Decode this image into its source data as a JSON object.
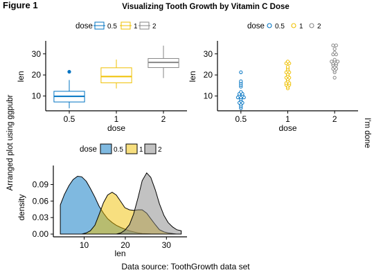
{
  "figure": {
    "label": "Figure 1",
    "title": "Visualizing Tooth Growth by Vitamin C Dose",
    "left_label": "Arranged plot using ggpubr",
    "right_label": "I'm done",
    "bottom_label": "Data source: ToothGrowth data set"
  },
  "colors": {
    "0.5": "#0073C2",
    "1": "#EFC000",
    "2": "#868686"
  },
  "chart_data": [
    {
      "id": "box",
      "type": "box",
      "xlabel": "dose",
      "ylabel": "len",
      "legend_title": "dose",
      "legend_position": "top",
      "categories": [
        "0.5",
        "1",
        "2"
      ],
      "yticks": [
        10,
        20,
        30
      ],
      "ylim": [
        3,
        35.5
      ],
      "grid": false,
      "boxes": [
        {
          "dose": "0.5",
          "min": 4.2,
          "q1": 7.2,
          "median": 9.85,
          "q3": 12.25,
          "max": 17.6,
          "outliers": [
            21.5
          ]
        },
        {
          "dose": "1",
          "min": 13.6,
          "q1": 16.25,
          "median": 19.25,
          "q3": 23.4,
          "max": 27.3,
          "outliers": []
        },
        {
          "dose": "2",
          "min": 18.5,
          "q1": 23.5,
          "median": 25.95,
          "q3": 27.8,
          "max": 33.9,
          "outliers": []
        }
      ]
    },
    {
      "id": "dot",
      "type": "dotplot",
      "xlabel": "dose",
      "ylabel": "len",
      "legend_title": "dose",
      "legend_position": "top",
      "categories": [
        "0.5",
        "1",
        "2"
      ],
      "yticks": [
        10,
        20,
        30
      ],
      "ylim": [
        3,
        35.5
      ],
      "grid": false,
      "points": {
        "0.5": [
          4.2,
          5.2,
          5.8,
          6.4,
          7.0,
          7.3,
          8.2,
          9.4,
          9.4,
          9.7,
          10.0,
          10.0,
          11.2,
          11.2,
          11.5,
          14.5,
          15.2,
          16.5,
          17.3,
          21.5
        ],
        "1": [
          13.6,
          14.5,
          15.2,
          15.5,
          16.5,
          16.5,
          17.3,
          17.6,
          18.5,
          18.8,
          19.7,
          20.0,
          21.2,
          21.5,
          22.4,
          23.3,
          23.6,
          25.2,
          25.8,
          26.4
        ],
        "2": [
          18.5,
          21.5,
          22.4,
          23.0,
          23.3,
          23.6,
          24.5,
          24.8,
          25.5,
          25.5,
          26.4,
          26.4,
          26.7,
          27.3,
          29.4,
          29.5,
          30.9,
          32.5,
          33.9,
          33.9
        ]
      }
    },
    {
      "id": "density",
      "type": "area",
      "xlabel": "len",
      "ylabel": "density",
      "legend_title": "dose",
      "legend_position": "top",
      "xticks": [
        10,
        20,
        30
      ],
      "yticks": [
        0.0,
        0.03,
        0.06,
        0.09
      ],
      "ytick_labels": [
        "0.00",
        "0.03",
        "0.06",
        "0.09"
      ],
      "xlim": [
        2.5,
        35
      ],
      "ylim": [
        -0.005,
        0.122
      ],
      "grid": false,
      "x": [
        4.2,
        5.2,
        6.3,
        7.3,
        8.4,
        9.4,
        10.5,
        11.5,
        12.6,
        13.6,
        14.7,
        15.7,
        16.8,
        17.8,
        18.9,
        19.9,
        21.0,
        22.0,
        23.1,
        24.1,
        25.2,
        26.2,
        27.3,
        28.3,
        29.4,
        30.4,
        31.5,
        32.5,
        33.6
      ],
      "series": [
        {
          "name": "0.5",
          "values": [
            0.053,
            0.072,
            0.088,
            0.099,
            0.105,
            0.104,
            0.096,
            0.083,
            0.067,
            0.051,
            0.038,
            0.028,
            0.021,
            0.016,
            0.012,
            0.009,
            0.006,
            0.004,
            0.002,
            0.001,
            0.0006,
            0.0003,
            0.0002,
            0.0001,
            0.0,
            0.0,
            0.0,
            0.0,
            0.0
          ]
        },
        {
          "name": "1",
          "values": [
            0.0,
            0.0,
            0.0,
            0.0,
            0.0,
            0.0,
            0.002,
            0.006,
            0.016,
            0.035,
            0.057,
            0.071,
            0.076,
            0.071,
            0.059,
            0.048,
            0.044,
            0.043,
            0.044,
            0.044,
            0.038,
            0.028,
            0.017,
            0.008,
            0.004,
            0.002,
            0.001,
            0.0,
            0.0
          ]
        },
        {
          "name": "2",
          "values": [
            0.0,
            0.0,
            0.0,
            0.0,
            0.0,
            0.0,
            0.0,
            0.0,
            0.0,
            0.0,
            0.0,
            0.0,
            0.0,
            0.0,
            0.002,
            0.007,
            0.017,
            0.036,
            0.066,
            0.097,
            0.111,
            0.103,
            0.08,
            0.055,
            0.034,
            0.021,
            0.013,
            0.008,
            0.006
          ]
        }
      ]
    }
  ]
}
